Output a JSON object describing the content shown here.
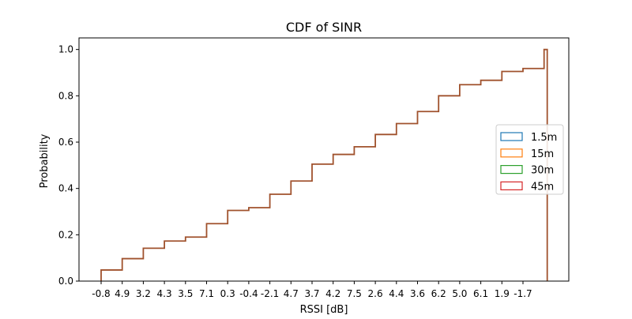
{
  "chart_data": {
    "type": "line",
    "title": "CDF of SINR",
    "xlabel": "RSSI [dB]",
    "ylabel": "Probability",
    "ylim": [
      0,
      1.05
    ],
    "grid": false,
    "legend_placement": "center-right",
    "x_tick_labels": [
      "-0.8",
      "4.9",
      "3.2",
      "4.3",
      "3.5",
      "7.1",
      "0.3",
      "-0.4",
      "-2.1",
      "4.7",
      "3.7",
      "4.2",
      "7.5",
      "2.6",
      "4.4",
      "3.6",
      "6.2",
      "5.0",
      "6.1",
      "1.9",
      "-1.7"
    ],
    "y_ticks": [
      0.0,
      0.2,
      0.4,
      0.6,
      0.8,
      1.0
    ],
    "y_tick_labels": [
      "0.0",
      "0.2",
      "0.4",
      "0.6",
      "0.8",
      "1.0"
    ],
    "series": [
      {
        "name": "1.5m",
        "color": "#1f77b4"
      },
      {
        "name": "15m",
        "color": "#ff7f0e"
      },
      {
        "name": "30m",
        "color": "#2ca02c"
      },
      {
        "name": "45m",
        "color": "#d62728"
      }
    ],
    "step_cdf_values": [
      0.048,
      0.097,
      0.142,
      0.173,
      0.19,
      0.248,
      0.305,
      0.317,
      0.375,
      0.432,
      0.505,
      0.547,
      0.58,
      0.633,
      0.68,
      0.732,
      0.8,
      0.848,
      0.867,
      0.905,
      0.918,
      1.0
    ],
    "visible_line_color": "#a0522d"
  }
}
